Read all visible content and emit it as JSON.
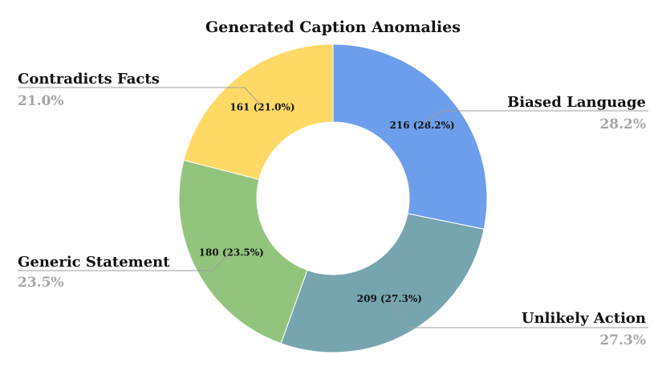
{
  "chart_data": {
    "type": "pie",
    "variant": "donut",
    "title": "Generated Caption Anomalies",
    "slices": [
      {
        "name": "Biased Language",
        "value": 216,
        "percent": "28.2%",
        "color": "#6d9eeb"
      },
      {
        "name": "Unlikely Action",
        "value": 209,
        "percent": "27.3%",
        "color": "#76a5af"
      },
      {
        "name": "Generic Statement",
        "value": 180,
        "percent": "23.5%",
        "color": "#93c47d"
      },
      {
        "name": "Contradicts Facts",
        "value": 161,
        "percent": "21.0%",
        "color": "#ffd966"
      }
    ]
  }
}
